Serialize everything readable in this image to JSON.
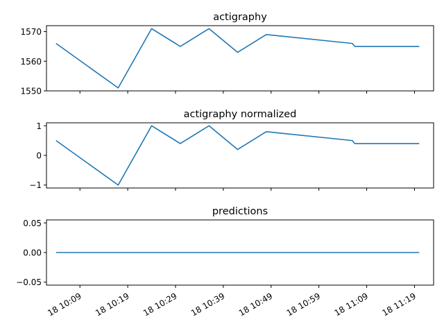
{
  "chart_data": [
    {
      "type": "line",
      "title": "actigraphy",
      "ylim": [
        1550,
        1572
      ],
      "yticks": [
        1550,
        1560,
        1570
      ],
      "ytick_labels": [
        "1550",
        "1560",
        "1570"
      ],
      "grid": false,
      "x": [
        "10:04",
        "10:17",
        "10:24",
        "10:30",
        "10:36",
        "10:42",
        "10:48",
        "11:06",
        "11:06.5",
        "11:20"
      ],
      "series": [
        {
          "color": "#1f77b4",
          "values": [
            1566,
            1551,
            1571,
            1565,
            1571,
            1563,
            1569,
            1566,
            1565,
            1565
          ]
        }
      ]
    },
    {
      "type": "line",
      "title": "actigraphy normalized",
      "ylim": [
        -1.1,
        1.1
      ],
      "yticks": [
        -1,
        0,
        1
      ],
      "ytick_labels": [
        "−1",
        "0",
        "1"
      ],
      "grid": false,
      "x": [
        "10:04",
        "10:17",
        "10:24",
        "10:30",
        "10:36",
        "10:42",
        "10:48",
        "11:06",
        "11:06.5",
        "11:20"
      ],
      "series": [
        {
          "color": "#1f77b4",
          "values": [
            0.5,
            -1.0,
            1.0,
            0.4,
            1.0,
            0.2,
            0.8,
            0.5,
            0.4,
            0.4
          ]
        }
      ]
    },
    {
      "type": "line",
      "title": "predictions",
      "ylim": [
        -0.055,
        0.055
      ],
      "yticks": [
        -0.05,
        0.0,
        0.05
      ],
      "ytick_labels": [
        "−0.05",
        "0.00",
        "0.05"
      ],
      "grid": false,
      "x": [
        "10:04",
        "10:17",
        "10:24",
        "10:30",
        "10:36",
        "10:42",
        "10:48",
        "11:06",
        "11:06.5",
        "11:20"
      ],
      "series": [
        {
          "color": "#1f77b4",
          "values": [
            0,
            0,
            0,
            0,
            0,
            0,
            0,
            0,
            0,
            0
          ]
        }
      ]
    }
  ],
  "x_axis": {
    "xlim": [
      "10:02",
      "11:23"
    ],
    "ticks": [
      "10:09",
      "10:19",
      "10:29",
      "10:39",
      "10:49",
      "10:59",
      "11:09",
      "11:19"
    ],
    "tick_labels": [
      "18 10:09",
      "18 10:19",
      "18 10:29",
      "18 10:39",
      "18 10:49",
      "18 10:59",
      "18 11:09",
      "18 11:19"
    ]
  }
}
